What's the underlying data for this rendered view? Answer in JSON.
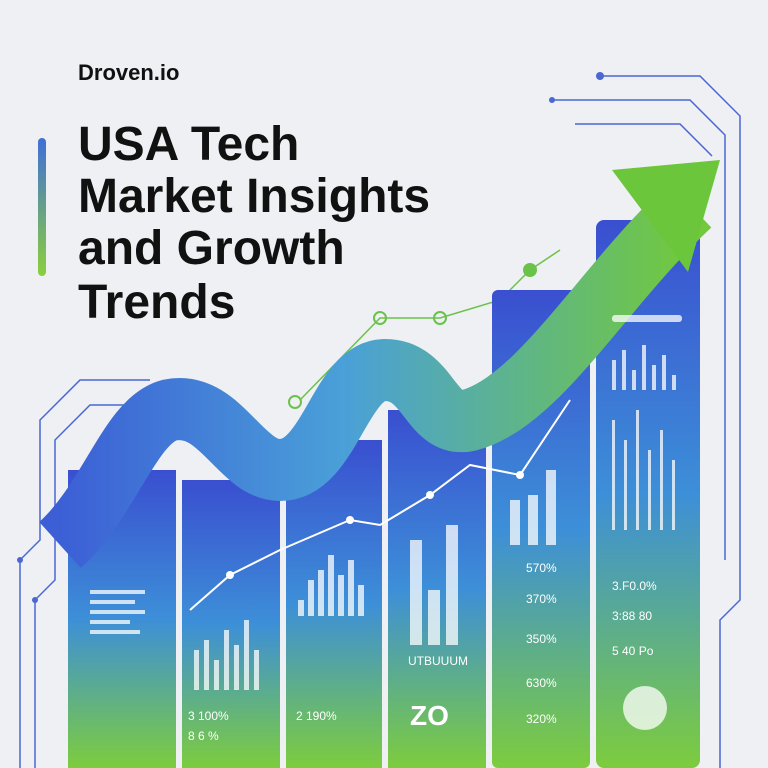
{
  "brand": "Droven.io",
  "title": [
    "USA Tech",
    "Market Insights",
    "and Growth",
    "Trends"
  ],
  "panels": [
    {
      "labels": [
        "3 100%",
        "8   6   %"
      ]
    },
    {
      "labels": [
        "2 190%"
      ]
    },
    {
      "labels": [
        "UTBUUUM",
        "ZO"
      ]
    },
    {
      "labels": [
        "570%",
        "370%",
        "350%",
        "630%",
        "320%"
      ]
    },
    {
      "labels": [
        "3.F0.0%",
        "3:88 80",
        "5 40 Po"
      ]
    }
  ]
}
